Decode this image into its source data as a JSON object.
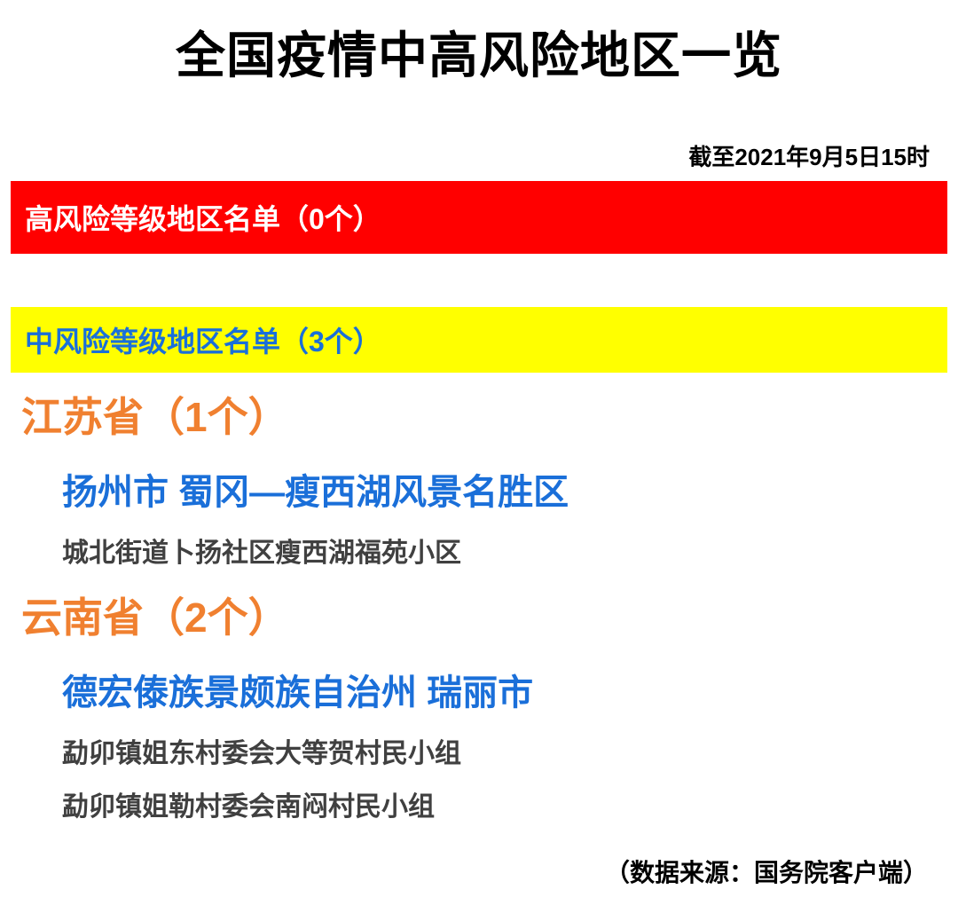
{
  "title": "全国疫情中高风险地区一览",
  "timestamp": "截至2021年9月5日15时",
  "high_risk": {
    "header": "高风险等级地区名单（0个）",
    "bg_color": "#ff0000",
    "text_color": "#ffffff"
  },
  "medium_risk": {
    "header": "中风险等级地区名单（3个）",
    "bg_color": "#ffff00",
    "text_color": "#1a6fd9"
  },
  "provinces": [
    {
      "name": "江苏省（1个）",
      "color": "#f08030",
      "areas": [
        {
          "city": "扬州市 蜀冈—瘦西湖风景名胜区",
          "city_color": "#1a6fd9",
          "details": [
            "城北街道卜扬社区瘦西湖福苑小区"
          ]
        }
      ]
    },
    {
      "name": "云南省（2个）",
      "color": "#f08030",
      "areas": [
        {
          "city": "德宏傣族景颇族自治州 瑞丽市",
          "city_color": "#1a6fd9",
          "details": [
            "勐卯镇姐东村委会大等贺村民小组",
            "勐卯镇姐勒村委会南闷村民小组"
          ]
        }
      ]
    }
  ],
  "source": "（数据来源：国务院客户端）",
  "styles": {
    "title_fontsize": 56,
    "timestamp_fontsize": 26,
    "header_fontsize": 32,
    "province_fontsize": 46,
    "city_fontsize": 40,
    "detail_fontsize": 30,
    "detail_color": "#404040",
    "source_fontsize": 28,
    "background_color": "#ffffff"
  }
}
